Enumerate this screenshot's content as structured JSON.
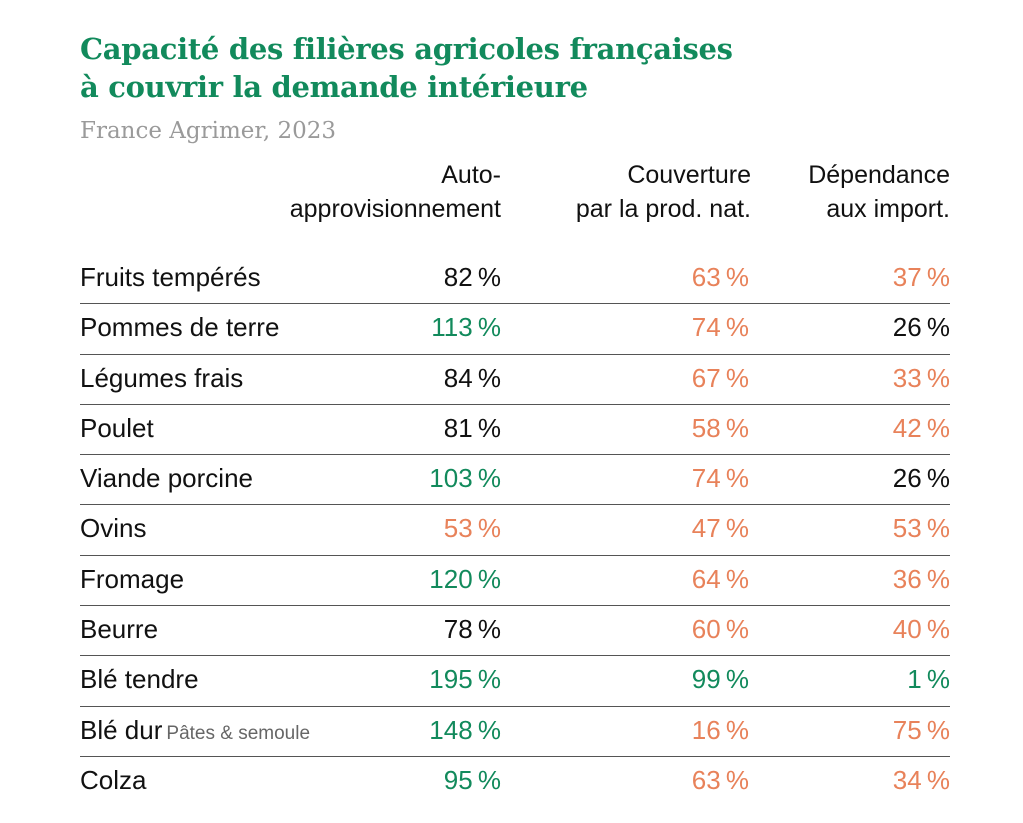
{
  "header": {
    "title_line1": "Capacité des filières agricoles françaises",
    "title_line2": "à couvrir la demande intérieure",
    "subtitle": "France Agrimer, 2023"
  },
  "columns": [
    {
      "line1": "Auto-",
      "line2": "approvisionnement"
    },
    {
      "line1": "Couverture",
      "line2": "par la prod. nat."
    },
    {
      "line1": "Dépendance",
      "line2": "aux import."
    }
  ],
  "colors": {
    "green": "#128a5c",
    "orange": "#e8825a",
    "neutral": "#111111"
  },
  "chart_data": {
    "type": "table",
    "title": "Capacité des filières agricoles françaises à couvrir la demande intérieure",
    "subtitle": "France Agrimer, 2023",
    "columns": [
      "Auto-approvisionnement",
      "Couverture par la prod. nat.",
      "Dépendance aux import."
    ],
    "unit": "%",
    "rows": [
      {
        "label": "Fruits tempérés",
        "note": "",
        "values": [
          82,
          63,
          37
        ],
        "tones": [
          "black",
          "orange",
          "orange"
        ]
      },
      {
        "label": "Pommes de terre",
        "note": "",
        "values": [
          113,
          74,
          26
        ],
        "tones": [
          "green",
          "orange",
          "black"
        ]
      },
      {
        "label": "Légumes frais",
        "note": "",
        "values": [
          84,
          67,
          33
        ],
        "tones": [
          "black",
          "orange",
          "orange"
        ]
      },
      {
        "label": "Poulet",
        "note": "",
        "values": [
          81,
          58,
          42
        ],
        "tones": [
          "black",
          "orange",
          "orange"
        ]
      },
      {
        "label": "Viande porcine",
        "note": "",
        "values": [
          103,
          74,
          26
        ],
        "tones": [
          "green",
          "orange",
          "black"
        ]
      },
      {
        "label": "Ovins",
        "note": "",
        "values": [
          53,
          47,
          53
        ],
        "tones": [
          "orange",
          "orange",
          "orange"
        ]
      },
      {
        "label": "Fromage",
        "note": "",
        "values": [
          120,
          64,
          36
        ],
        "tones": [
          "green",
          "orange",
          "orange"
        ]
      },
      {
        "label": "Beurre",
        "note": "",
        "values": [
          78,
          60,
          40
        ],
        "tones": [
          "black",
          "orange",
          "orange"
        ]
      },
      {
        "label": "Blé tendre",
        "note": "",
        "values": [
          195,
          99,
          1
        ],
        "tones": [
          "green",
          "green",
          "green"
        ]
      },
      {
        "label": "Blé dur",
        "note": "Pâtes & semoule",
        "values": [
          148,
          16,
          75
        ],
        "tones": [
          "green",
          "orange",
          "orange"
        ]
      },
      {
        "label": "Colza",
        "note": "",
        "values": [
          95,
          63,
          34
        ],
        "tones": [
          "green",
          "orange",
          "orange"
        ]
      }
    ]
  }
}
